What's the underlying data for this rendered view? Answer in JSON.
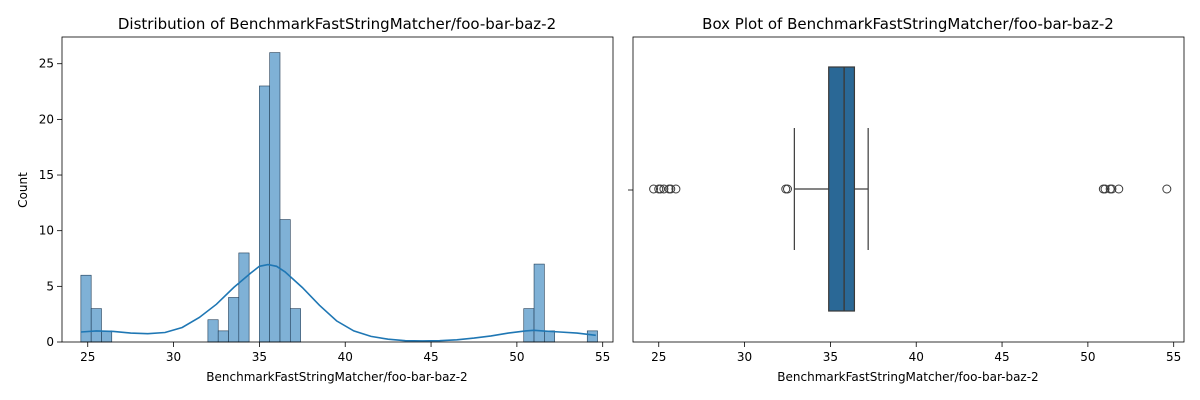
{
  "colors": {
    "hist_fill": "#7fb1d6",
    "hist_edge": "#1f3b55",
    "kde_line": "#1f77b4",
    "box_fill": "#2a6896",
    "box_edge": "#3a3a3a",
    "outlier_edge": "#3a3a3a"
  },
  "chart_data": [
    {
      "type": "histogram",
      "title": "Distribution of BenchmarkFastStringMatcher/foo-bar-baz-2",
      "xlabel": "BenchmarkFastStringMatcher/foo-bar-baz-2",
      "ylabel": "Count",
      "xlim": [
        23.5,
        55.6
      ],
      "ylim": [
        0,
        27.4
      ],
      "x_ticks": [
        25,
        30,
        35,
        40,
        45,
        50,
        55
      ],
      "y_ticks": [
        0,
        5,
        10,
        15,
        20,
        25
      ],
      "bin_width": 0.6,
      "bins": [
        {
          "x": 24.6,
          "count": 6
        },
        {
          "x": 25.2,
          "count": 3
        },
        {
          "x": 25.8,
          "count": 1
        },
        {
          "x": 32.0,
          "count": 2
        },
        {
          "x": 32.6,
          "count": 1
        },
        {
          "x": 33.2,
          "count": 4
        },
        {
          "x": 33.8,
          "count": 8
        },
        {
          "x": 35.0,
          "count": 23
        },
        {
          "x": 35.6,
          "count": 26
        },
        {
          "x": 36.2,
          "count": 11
        },
        {
          "x": 36.8,
          "count": 3
        },
        {
          "x": 50.4,
          "count": 3
        },
        {
          "x": 51.0,
          "count": 7
        },
        {
          "x": 51.6,
          "count": 1
        },
        {
          "x": 54.1,
          "count": 1
        }
      ],
      "kde": {
        "x": [
          24.6,
          25.5,
          26.5,
          27.5,
          28.5,
          29.5,
          30.5,
          31.5,
          32.5,
          33.5,
          34.5,
          35.0,
          35.5,
          36.0,
          36.5,
          37.5,
          38.5,
          39.5,
          40.5,
          41.5,
          42.5,
          43.5,
          44.5,
          45.5,
          46.5,
          47.5,
          48.5,
          49.5,
          50.5,
          51.0,
          51.5,
          52.5,
          53.5,
          54.6
        ],
        "y": [
          0.9,
          1.0,
          0.95,
          0.8,
          0.75,
          0.85,
          1.3,
          2.2,
          3.4,
          4.9,
          6.2,
          6.8,
          6.95,
          6.8,
          6.3,
          4.9,
          3.3,
          1.9,
          1.0,
          0.5,
          0.25,
          0.12,
          0.1,
          0.12,
          0.2,
          0.35,
          0.55,
          0.8,
          1.0,
          1.05,
          1.0,
          0.9,
          0.8,
          0.6
        ]
      }
    },
    {
      "type": "box",
      "title": "Box Plot of BenchmarkFastStringMatcher/foo-bar-baz-2",
      "xlabel": "BenchmarkFastStringMatcher/foo-bar-baz-2",
      "xlim": [
        23.5,
        55.6
      ],
      "x_ticks": [
        25,
        30,
        35,
        40,
        45,
        50,
        55
      ],
      "q1": 34.9,
      "median": 35.8,
      "q3": 36.4,
      "whisker_low": 32.9,
      "whisker_high": 37.2,
      "outliers": [
        24.7,
        25.0,
        25.1,
        25.3,
        25.6,
        25.7,
        26.0,
        32.4,
        32.5,
        50.9,
        51.0,
        51.3,
        51.4,
        51.8,
        54.6
      ]
    }
  ]
}
